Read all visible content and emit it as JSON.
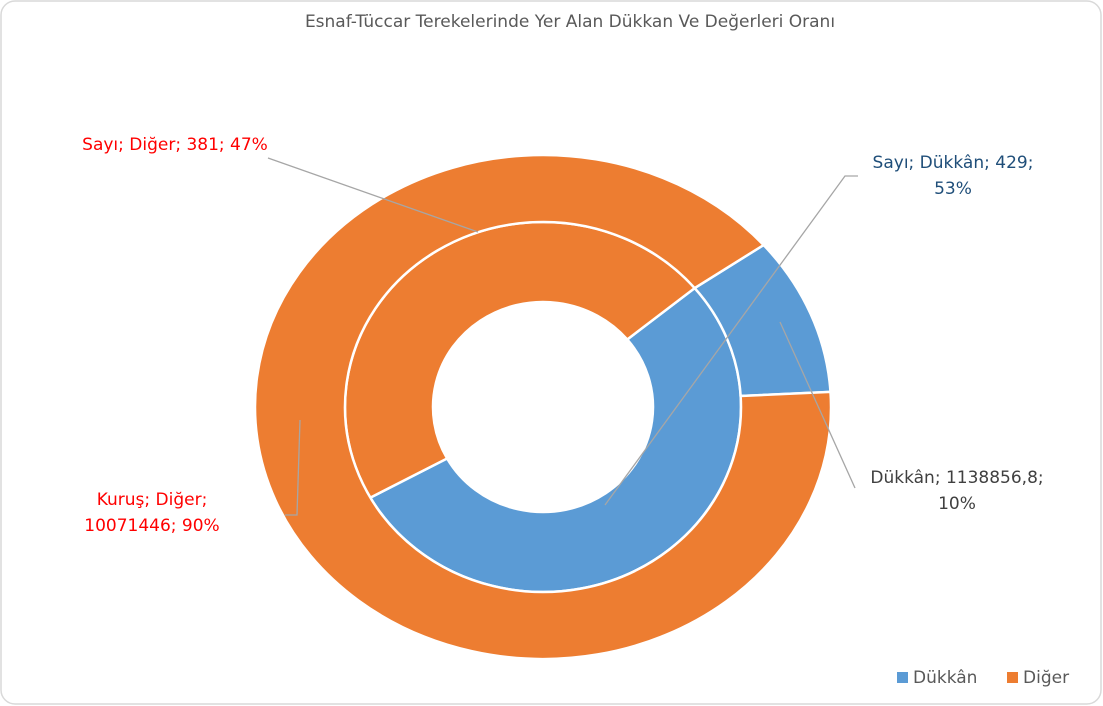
{
  "chart_data": {
    "type": "doughnut",
    "title": "Esnaf-Tüccar Terekelerinde Yer Alan Dükkan Ve Değerleri Oranı",
    "categories": [
      "Dükkân",
      "Diğer"
    ],
    "colors": [
      "#5b9bd5",
      "#ed7d31"
    ],
    "series": [
      {
        "name": "Sayı",
        "values": [
          429,
          381
        ],
        "value_labels": [
          "Sayı; Dükkân; 429; 53%",
          "Sayı; Diğer; 381; 47%"
        ],
        "label_colors": [
          "#1f4e79",
          "#ff0000"
        ]
      },
      {
        "name": "Kuruş",
        "values": [
          1138856.8,
          10071446
        ],
        "value_labels": [
          "Dükkân; 1138856,8; 10%",
          "Kuruş; Diğer; 10071446; 90%"
        ],
        "label_colors": [
          "#404040",
          "#ff0000"
        ]
      }
    ],
    "legend": "bottom-right"
  }
}
